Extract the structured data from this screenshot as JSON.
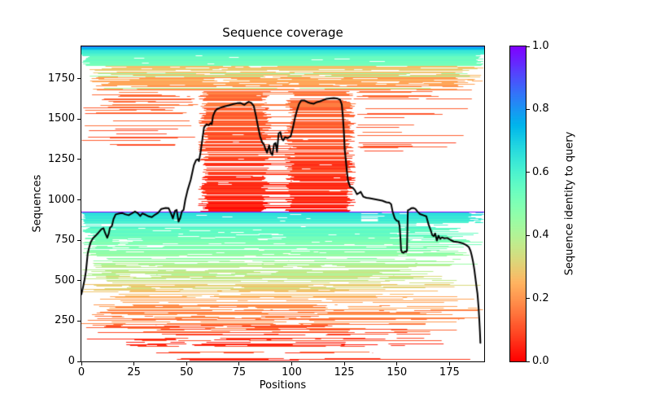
{
  "chart_data": {
    "type": "heatmap",
    "subtype": "msa-sequence-coverage",
    "title": "Sequence coverage",
    "xlabel": "Positions",
    "ylabel": "Sequences",
    "colorbar_label": "Sequence identity to query",
    "colormap": "rainbow_r",
    "background": "#ffffff",
    "xlim": [
      0,
      191.5
    ],
    "ylim": [
      0,
      1950
    ],
    "x_ticks": [
      0,
      25,
      50,
      75,
      100,
      125,
      150,
      175
    ],
    "y_ticks": [
      0,
      250,
      500,
      750,
      1000,
      1250,
      1500,
      1750
    ],
    "colorbar_ticks": [
      {
        "value": 0.0,
        "label": "0.0"
      },
      {
        "value": 0.2,
        "label": "0.2"
      },
      {
        "value": 0.4,
        "label": "0.4"
      },
      {
        "value": 0.6,
        "label": "0.6"
      },
      {
        "value": 0.8,
        "label": "0.8"
      },
      {
        "value": 1.0,
        "label": "1.0"
      }
    ],
    "n_sequences": 1950,
    "n_positions": 192,
    "query_row": 925,
    "grid": false,
    "legend": "none",
    "msa_bands": [
      {
        "rows": [
          0,
          90
        ],
        "identity": [
          0.04,
          0.13
        ],
        "jitter": 0.05,
        "presence": 0.45,
        "x_start": [
          5,
          90
        ],
        "x_end": [
          60,
          185
        ],
        "gaps": [
          1,
          3
        ],
        "gap_w": [
          3,
          20
        ]
      },
      {
        "rows": [
          90,
          280
        ],
        "identity": [
          0.06,
          0.18
        ],
        "jitter": 0.05,
        "presence": 0.72,
        "x_start": [
          0,
          45
        ],
        "x_end": [
          90,
          190
        ],
        "gaps": [
          2,
          4
        ],
        "gap_w": [
          3,
          22
        ]
      },
      {
        "rows": [
          280,
          460
        ],
        "identity": [
          0.15,
          0.3
        ],
        "jitter": 0.05,
        "presence": 0.8,
        "x_start": [
          0,
          25
        ],
        "x_end": [
          120,
          191
        ],
        "gaps": [
          2,
          4
        ],
        "gap_w": [
          3,
          18
        ]
      },
      {
        "rows": [
          460,
          640
        ],
        "identity": [
          0.3,
          0.45
        ],
        "jitter": 0.04,
        "presence": 0.85,
        "x_start": [
          0,
          15
        ],
        "x_end": [
          140,
          191
        ],
        "gaps": [
          2,
          3
        ],
        "gap_w": [
          3,
          15
        ]
      },
      {
        "rows": [
          640,
          800
        ],
        "identity": [
          0.44,
          0.56
        ],
        "jitter": 0.03,
        "presence": 0.9,
        "x_start": [
          0,
          8
        ],
        "x_end": [
          150,
          191
        ],
        "gaps": [
          1,
          3
        ],
        "gap_w": [
          2,
          12
        ]
      },
      {
        "rows": [
          800,
          855
        ],
        "identity": [
          0.55,
          0.6
        ],
        "jitter": 0.02,
        "presence": 0.95,
        "x_start": [
          0,
          5
        ],
        "x_end": [
          165,
          191
        ],
        "gaps": [
          1,
          2
        ],
        "gap_w": [
          2,
          10
        ]
      },
      {
        "rows": [
          855,
          922
        ],
        "identity": [
          0.6,
          0.66
        ],
        "jitter": 0.02,
        "presence": 1.0,
        "x_start": [
          0,
          2
        ],
        "x_end": [
          184,
          191.5
        ],
        "gaps": [
          0,
          1
        ],
        "gap_w": [
          2,
          6
        ],
        "notch": {
          "x": [
            133,
            141
          ],
          "p": 0.35
        },
        "right_dash": {
          "p": 0.5,
          "start": [
            186,
            188
          ]
        }
      },
      {
        "rows": [
          922,
          928
        ],
        "identity": [
          1.0,
          1.0
        ],
        "jitter": 0,
        "presence": 1.0,
        "x_start": [
          0,
          0
        ],
        "x_end": [
          191.5,
          191.5
        ],
        "gaps": [
          0,
          0
        ],
        "gap_w": [
          0,
          0
        ]
      },
      {
        "rows": [
          928,
          1672
        ],
        "pattern": "center",
        "identity": [
          0.04,
          0.15
        ],
        "jitter": 0.03,
        "presence": 0.95,
        "center_left": [
          58,
          88
        ],
        "center_right": [
          99,
          128
        ],
        "p_left_only": 0.12,
        "p_right_only": 0.12,
        "p_mid_gap": 0.55,
        "tail_left": {
          "rows": [
            1330,
            1672
          ],
          "p": 0.4,
          "start": [
            0,
            20
          ],
          "end": [
            35,
            56
          ]
        },
        "tail_right": {
          "rows": [
            1280,
            1672
          ],
          "p": 0.35,
          "start": [
            129,
            136
          ],
          "end": [
            148,
            186
          ]
        }
      },
      {
        "rows": [
          1672,
          1828
        ],
        "identity": [
          0.17,
          0.3
        ],
        "jitter": 0.04,
        "presence": 0.92,
        "x_start": [
          3,
          25
        ],
        "x_end": [
          175,
          191.5
        ],
        "gaps": [
          2,
          4
        ],
        "gap_w": [
          3,
          16
        ],
        "alt": {
          "p": 0.1,
          "identity": [
            0.38,
            0.46
          ]
        }
      },
      {
        "rows": [
          1828,
          1900
        ],
        "identity": [
          0.5,
          0.58
        ],
        "jitter": 0.02,
        "presence": 1.0,
        "x_start": [
          0,
          4
        ],
        "x_end": [
          187,
          191.5
        ],
        "gaps": [
          0,
          1
        ],
        "gap_w": [
          3,
          8
        ]
      },
      {
        "rows": [
          1900,
          1932
        ],
        "identity": [
          0.6,
          0.67
        ],
        "jitter": 0.02,
        "presence": 1.0,
        "x_start": [
          0,
          0
        ],
        "x_end": [
          191.5,
          191.5
        ],
        "gaps": [
          0,
          0
        ],
        "gap_w": [
          0,
          0
        ]
      },
      {
        "rows": [
          1932,
          1946
        ],
        "identity": [
          0.72,
          0.78
        ],
        "jitter": 0.01,
        "presence": 1.0,
        "x_start": [
          0,
          0
        ],
        "x_end": [
          191.5,
          191.5
        ],
        "gaps": [
          0,
          0
        ],
        "gap_w": [
          0,
          0
        ]
      },
      {
        "rows": [
          1946,
          1950
        ],
        "identity": [
          0.84,
          0.86
        ],
        "jitter": 0.0,
        "presence": 1.0,
        "x_start": [
          0,
          0
        ],
        "x_end": [
          191.5,
          191.5
        ],
        "gaps": [
          0,
          0
        ],
        "gap_w": [
          0,
          0
        ]
      }
    ],
    "coverage_line": {
      "color": "#000000",
      "width": 2,
      "points": [
        [
          0,
          415
        ],
        [
          0.7,
          455
        ],
        [
          1.5,
          505
        ],
        [
          2.2,
          560
        ],
        [
          3,
          665
        ],
        [
          3.6,
          700
        ],
        [
          4.5,
          740
        ],
        [
          5.5,
          762
        ],
        [
          6.5,
          775
        ],
        [
          8,
          795
        ],
        [
          9.5,
          818
        ],
        [
          10.5,
          825
        ],
        [
          11.3,
          795
        ],
        [
          12.3,
          765
        ],
        [
          13,
          790
        ],
        [
          13.6,
          828
        ],
        [
          14.5,
          838
        ],
        [
          15.3,
          882
        ],
        [
          16.3,
          910
        ],
        [
          18,
          916
        ],
        [
          19.5,
          918
        ],
        [
          21,
          910
        ],
        [
          22.5,
          905
        ],
        [
          24,
          916
        ],
        [
          25.5,
          928
        ],
        [
          26.8,
          918
        ],
        [
          28,
          900
        ],
        [
          29,
          916
        ],
        [
          30.5,
          908
        ],
        [
          32,
          898
        ],
        [
          33.5,
          893
        ],
        [
          35,
          908
        ],
        [
          36.5,
          920
        ],
        [
          38,
          944
        ],
        [
          40,
          950
        ],
        [
          41.5,
          948
        ],
        [
          42.8,
          910
        ],
        [
          43.5,
          885
        ],
        [
          44.5,
          932
        ],
        [
          45.3,
          938
        ],
        [
          46.2,
          865
        ],
        [
          47,
          888
        ],
        [
          47.8,
          930
        ],
        [
          48.6,
          938
        ],
        [
          49.4,
          1000
        ],
        [
          50.5,
          1060
        ],
        [
          52,
          1125
        ],
        [
          53.5,
          1215
        ],
        [
          54.5,
          1245
        ],
        [
          55.3,
          1252
        ],
        [
          55.9,
          1240
        ],
        [
          56.6,
          1290
        ],
        [
          57.5,
          1372
        ],
        [
          58.3,
          1448
        ],
        [
          59.5,
          1468
        ],
        [
          60.5,
          1462
        ],
        [
          61.5,
          1475
        ],
        [
          62,
          1468
        ],
        [
          62.6,
          1520
        ],
        [
          63.5,
          1548
        ],
        [
          64.5,
          1562
        ],
        [
          66,
          1570
        ],
        [
          68,
          1578
        ],
        [
          70,
          1585
        ],
        [
          72,
          1592
        ],
        [
          74,
          1598
        ],
        [
          75.5,
          1600
        ],
        [
          76.5,
          1594
        ],
        [
          77.5,
          1588
        ],
        [
          78.6,
          1600
        ],
        [
          79.6,
          1607
        ],
        [
          80.8,
          1600
        ],
        [
          82,
          1580
        ],
        [
          83,
          1520
        ],
        [
          84,
          1452
        ],
        [
          85,
          1392
        ],
        [
          86,
          1355
        ],
        [
          86.8,
          1342
        ],
        [
          87.5,
          1315
        ],
        [
          88.3,
          1292
        ],
        [
          89.3,
          1338
        ],
        [
          90,
          1292
        ],
        [
          90.8,
          1278
        ],
        [
          91.6,
          1345
        ],
        [
          92.3,
          1352
        ],
        [
          93,
          1298
        ],
        [
          93.8,
          1412
        ],
        [
          94.6,
          1420
        ],
        [
          95.3,
          1378
        ],
        [
          96,
          1368
        ],
        [
          96.8,
          1388
        ],
        [
          98,
          1382
        ],
        [
          99.5,
          1393
        ],
        [
          100.5,
          1443
        ],
        [
          101.5,
          1504
        ],
        [
          102.5,
          1554
        ],
        [
          103.5,
          1594
        ],
        [
          104.5,
          1615
        ],
        [
          106,
          1615
        ],
        [
          107.5,
          1605
        ],
        [
          109,
          1598
        ],
        [
          110.5,
          1595
        ],
        [
          112,
          1605
        ],
        [
          113.5,
          1610
        ],
        [
          115,
          1618
        ],
        [
          116.5,
          1625
        ],
        [
          118,
          1628
        ],
        [
          120,
          1630
        ],
        [
          121.5,
          1628
        ],
        [
          123,
          1620
        ],
        [
          123.8,
          1590
        ],
        [
          124.3,
          1520
        ],
        [
          124.8,
          1420
        ],
        [
          125.2,
          1310
        ],
        [
          125.6,
          1263
        ],
        [
          126.2,
          1180
        ],
        [
          126.8,
          1117
        ],
        [
          127.8,
          1080
        ],
        [
          129,
          1075
        ],
        [
          130,
          1060
        ],
        [
          131,
          1035
        ],
        [
          132,
          1042
        ],
        [
          132.8,
          1050
        ],
        [
          134,
          1020
        ],
        [
          135.5,
          1013
        ],
        [
          137,
          1010
        ],
        [
          139,
          1005
        ],
        [
          141,
          1000
        ],
        [
          143,
          995
        ],
        [
          145,
          985
        ],
        [
          146.5,
          982
        ],
        [
          147.3,
          972
        ],
        [
          148,
          925
        ],
        [
          149,
          885
        ],
        [
          150,
          870
        ],
        [
          150.8,
          868
        ],
        [
          151.3,
          838
        ],
        [
          151.7,
          758
        ],
        [
          152,
          690
        ],
        [
          152.5,
          675
        ],
        [
          153.2,
          672
        ],
        [
          153.8,
          680
        ],
        [
          154.4,
          678
        ],
        [
          154.8,
          688
        ],
        [
          155.2,
          935
        ],
        [
          156,
          940
        ],
        [
          156.8,
          948
        ],
        [
          157.8,
          950
        ],
        [
          158.8,
          944
        ],
        [
          159.8,
          928
        ],
        [
          161,
          912
        ],
        [
          162.5,
          905
        ],
        [
          164,
          898
        ],
        [
          165,
          850
        ],
        [
          166,
          815
        ],
        [
          166.8,
          782
        ],
        [
          167.5,
          775
        ],
        [
          168.2,
          792
        ],
        [
          169,
          748
        ],
        [
          169.8,
          778
        ],
        [
          170.6,
          758
        ],
        [
          171.5,
          768
        ],
        [
          172.5,
          762
        ],
        [
          174,
          764
        ],
        [
          175.5,
          752
        ],
        [
          177,
          742
        ],
        [
          178.5,
          740
        ],
        [
          180,
          736
        ],
        [
          181.5,
          730
        ],
        [
          183,
          720
        ],
        [
          184.2,
          708
        ],
        [
          185,
          685
        ],
        [
          185.6,
          655
        ],
        [
          186.2,
          618
        ],
        [
          186.8,
          570
        ],
        [
          187.3,
          520
        ],
        [
          187.8,
          468
        ],
        [
          188.3,
          420
        ],
        [
          188.8,
          340
        ],
        [
          189.2,
          255
        ],
        [
          189.5,
          180
        ],
        [
          189.7,
          115
        ]
      ]
    }
  }
}
